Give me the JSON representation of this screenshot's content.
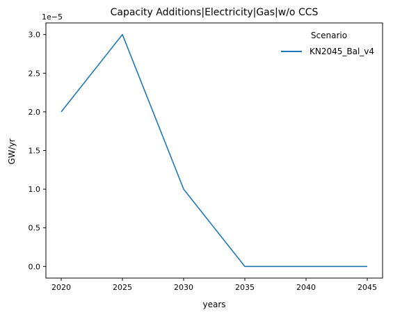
{
  "chart_data": {
    "type": "line",
    "title": "Capacity Additions|Electricity|Gas|w/o CCS",
    "xlabel": "years",
    "ylabel": "GW/yr",
    "y_scale_label": "1e−5",
    "x": [
      2020,
      2025,
      2030,
      2035,
      2040,
      2045
    ],
    "series": [
      {
        "name": "KN2045_Bal_v4",
        "values": [
          2e-05,
          3e-05,
          1e-05,
          0,
          0,
          0
        ],
        "color": "#1f77b4"
      }
    ],
    "x_ticks": [
      2020,
      2025,
      2030,
      2035,
      2040,
      2045
    ],
    "x_tick_labels": [
      "2020",
      "2025",
      "2030",
      "2035",
      "2040",
      "2045"
    ],
    "y_ticks": [
      0,
      5e-06,
      1e-05,
      1.5e-05,
      2e-05,
      2.5e-05,
      3e-05
    ],
    "y_tick_labels": [
      "0.0",
      "0.5",
      "1.0",
      "1.5",
      "2.0",
      "2.5",
      "3.0"
    ],
    "xlim": [
      2018.75,
      2046.25
    ],
    "ylim": [
      -1.5e-06,
      3.15e-05
    ],
    "grid": false,
    "legend": {
      "title": "Scenario",
      "position": "top-right"
    }
  }
}
